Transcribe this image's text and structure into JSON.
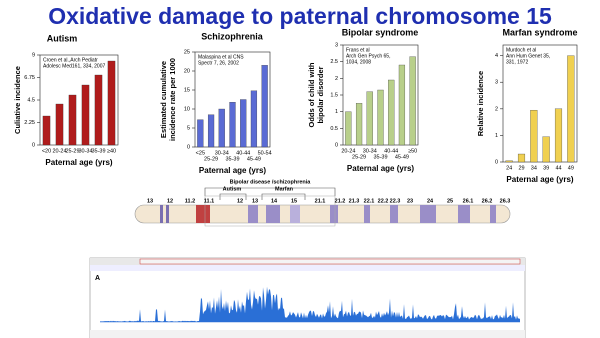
{
  "title": "Oxidative damage to paternal chromosome 15",
  "chart_data": [
    {
      "type": "bar",
      "title": "Autism",
      "note": [
        "Croen et al.,Arch Pediatr",
        "Adolesc Med161, 334, 2007"
      ],
      "ylabel": [
        "Culiative incidence"
      ],
      "xlabel": "Paternal age (yrs)",
      "categories": [
        "<20",
        "20-24",
        "25-29",
        "30-34",
        "35-39",
        "≥40"
      ],
      "values": [
        2.9,
        4.1,
        5.0,
        6.0,
        7.0,
        8.4
      ],
      "color": "#b01c1c",
      "ylim": [
        0,
        9
      ],
      "yticks": [
        0,
        2.25,
        4.5,
        6.75,
        9
      ]
    },
    {
      "type": "bar",
      "title": "Schizophrenia",
      "note": [
        "Malaspina et al CNS",
        "Spectr 7, 26, 2002"
      ],
      "ylabel": [
        "Estimated cumulative",
        "incidence rate per 1000"
      ],
      "xlabel": "Paternal age (yrs)",
      "categories": [
        "<25",
        "25-29",
        "30-34",
        "35-39",
        "40-44",
        "45-49",
        "50-54"
      ],
      "values": [
        7.2,
        8.5,
        10,
        11.8,
        12.5,
        14.8,
        21.5
      ],
      "color": "#5a6bd4",
      "ylim": [
        0,
        25
      ],
      "yticks": [
        0,
        5,
        10,
        15,
        20,
        25
      ]
    },
    {
      "type": "bar",
      "title": "Bipolar syndrome",
      "note": [
        "Frans et al",
        "Arch Gen Psych 65,",
        "1034, 2008"
      ],
      "ylabel": [
        "Odds of child with",
        "bipolar disorder"
      ],
      "xlabel": "Paternal age (yrs)",
      "categories": [
        "20-24",
        "25-29",
        "30-34",
        "35-39",
        "40-44",
        "45-49",
        "≥50"
      ],
      "values": [
        1.0,
        1.25,
        1.6,
        1.65,
        1.95,
        2.4,
        2.65
      ],
      "color": "#b8cf8a",
      "ylim": [
        0,
        3
      ],
      "yticks": [
        0,
        0.5,
        1,
        1.5,
        2,
        2.5,
        3
      ]
    },
    {
      "type": "bar",
      "title": "Marfan syndrome",
      "note": [
        "Murdoch et al",
        "Ann Hum Genet 35,",
        "331, 1972"
      ],
      "ylabel": [
        "Relative incidence"
      ],
      "xlabel": "Paternal age (yrs)",
      "categories": [
        "24",
        "29",
        "34",
        "39",
        "44",
        "49"
      ],
      "values": [
        0.05,
        0.3,
        1.95,
        0.95,
        2.0,
        4.0
      ],
      "color": "#f0d050",
      "ylim": [
        0,
        4.4
      ],
      "yticks": [
        0,
        1,
        2,
        3,
        4
      ]
    }
  ],
  "ideogram": {
    "bands": [
      "13",
      "12",
      "11.2",
      "11.1",
      "12",
      "13",
      "14",
      "15",
      "21.1",
      "21.2",
      "21.3",
      "22.1",
      "22.2",
      "22.3",
      "23",
      "24",
      "25",
      "26.1",
      "26.2",
      "26.3"
    ],
    "regions": [
      "Bipolar disease /schizophrenia",
      "Autism",
      "Marfan"
    ]
  },
  "browser": {
    "panel": "A"
  }
}
